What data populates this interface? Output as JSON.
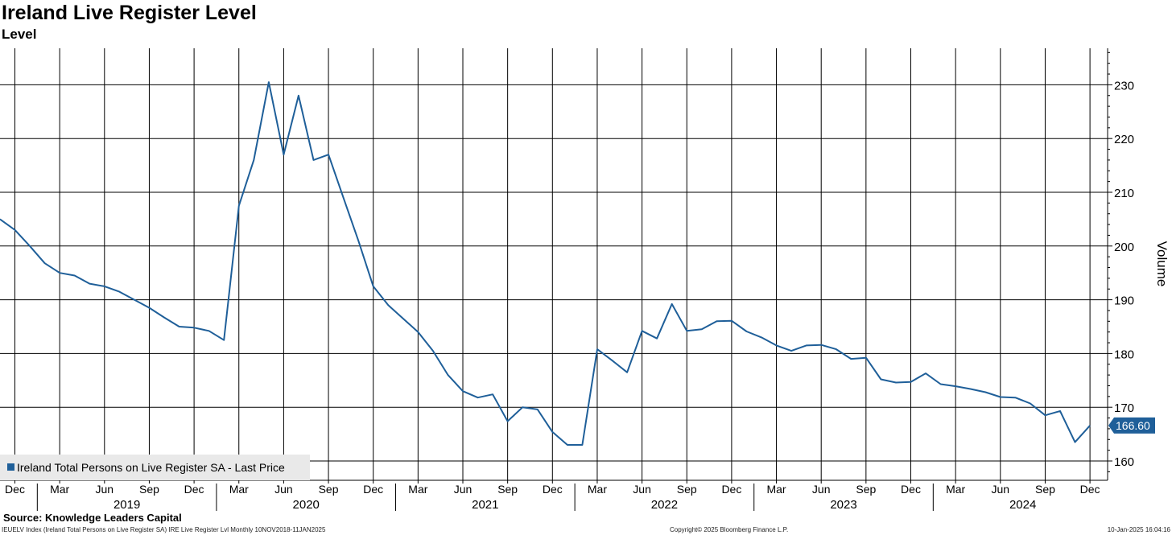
{
  "chart_data": {
    "type": "line",
    "title": "Ireland Live Register Level",
    "subtitle": "Level",
    "ylabel": "Volume",
    "ylim": [
      156,
      237
    ],
    "yticks": [
      160,
      170,
      180,
      190,
      200,
      210,
      220,
      230
    ],
    "grid": true,
    "legend_position": "bottom-left",
    "last_value_label": "166.60",
    "months": [
      "Dec",
      "Mar",
      "Jun",
      "Sep",
      "Dec",
      "Mar",
      "Jun",
      "Sep",
      "Dec",
      "Mar",
      "Jun",
      "Sep",
      "Dec",
      "Mar",
      "Jun",
      "Sep",
      "Dec",
      "Mar",
      "Jun",
      "Sep",
      "Dec",
      "Mar",
      "Jun",
      "Sep",
      "Dec"
    ],
    "years": [
      "2019",
      "2020",
      "2021",
      "2022",
      "2023",
      "2024"
    ],
    "series": [
      {
        "name": "Ireland Total Persons on Live Register SA - Last Price",
        "color": "#1f5f99",
        "x_start": "2018-11",
        "frequency": "monthly",
        "values": [
          205.0,
          203.0,
          200.0,
          196.8,
          195.0,
          194.5,
          193.0,
          192.5,
          191.5,
          190.0,
          188.5,
          186.7,
          185.0,
          184.8,
          184.2,
          182.5,
          207.5,
          216.0,
          230.5,
          217.0,
          228.0,
          216.0,
          217.0,
          209.0,
          201.0,
          192.5,
          189.0,
          186.5,
          184.0,
          180.5,
          176.0,
          173.0,
          171.8,
          172.4,
          167.4,
          170.0,
          169.6,
          165.4,
          163.0,
          163.0,
          180.8,
          178.7,
          176.5,
          184.2,
          182.8,
          189.2,
          184.2,
          184.5,
          186.0,
          186.1,
          184.1,
          183.0,
          181.5,
          180.5,
          181.5,
          181.6,
          180.8,
          179.0,
          179.2,
          175.2,
          174.6,
          174.7,
          176.3,
          174.3,
          173.9,
          173.4,
          172.8,
          171.9,
          171.8,
          170.7,
          168.5,
          169.3,
          163.5,
          166.6
        ]
      }
    ]
  },
  "footer": {
    "source": "Source: Knowledge Leaders Capital",
    "left": "IEUELV Index (Ireland Total Persons on Live Register SA) IRE Live Register Lvl  Monthly 10NOV2018-11JAN2025",
    "middle": "Copyright© 2025 Bloomberg Finance L.P.",
    "right": "10-Jan-2025 16:04:16"
  }
}
